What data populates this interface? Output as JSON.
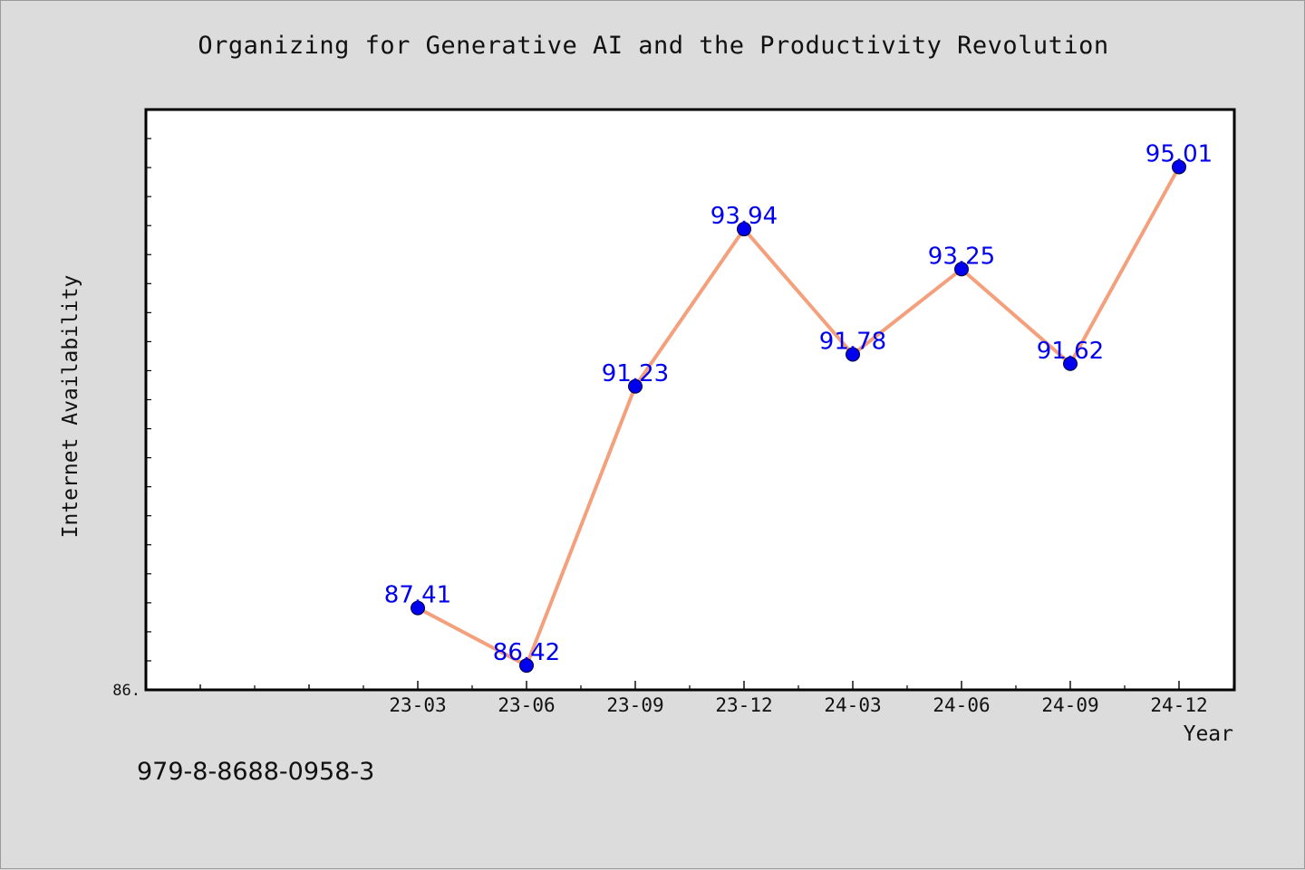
{
  "chart_data": {
    "type": "line",
    "title": "Organizing for Generative AI and the Productivity Revolution",
    "xlabel": "Year",
    "ylabel": "Internet Availability",
    "categories": [
      "23-03",
      "23-06",
      "23-09",
      "23-12",
      "24-03",
      "24-06",
      "24-09",
      "24-12"
    ],
    "series": [
      {
        "values": [
          87.41,
          86.42,
          91.23,
          93.94,
          91.78,
          93.25,
          91.62,
          95.01
        ],
        "line_color": "#f4a07c",
        "marker_color": "#0000ee",
        "label_color": "#0000ee"
      }
    ],
    "ylim": [
      86,
      96
    ],
    "ytick_label": "86.",
    "grid": false,
    "show_data_labels": true
  },
  "footer": {
    "isbn": "979-8-8688-0958-3"
  }
}
